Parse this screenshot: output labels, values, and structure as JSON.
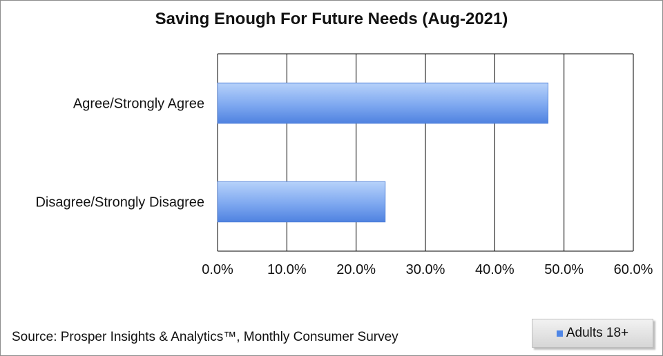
{
  "chart_data": {
    "type": "bar",
    "orientation": "horizontal",
    "title": "Saving Enough For Future Needs (Aug-2021)",
    "categories": [
      "Agree/Strongly Agree",
      "Disagree/Strongly Disagree"
    ],
    "series": [
      {
        "name": "Adults 18+",
        "values": [
          47.7,
          24.2
        ]
      }
    ],
    "xlim": [
      0,
      60
    ],
    "xticks": [
      "0.0%",
      "10.0%",
      "20.0%",
      "30.0%",
      "40.0%",
      "50.0%",
      "60.0%"
    ],
    "xlabel": "",
    "ylabel": "",
    "grid": true,
    "legend_position": "bottom-right",
    "colors": {
      "bar": "#5b8fe6",
      "bar_light": "#a9c8f7"
    }
  },
  "source": "Source: Prosper Insights & Analytics™, Monthly Consumer Survey"
}
